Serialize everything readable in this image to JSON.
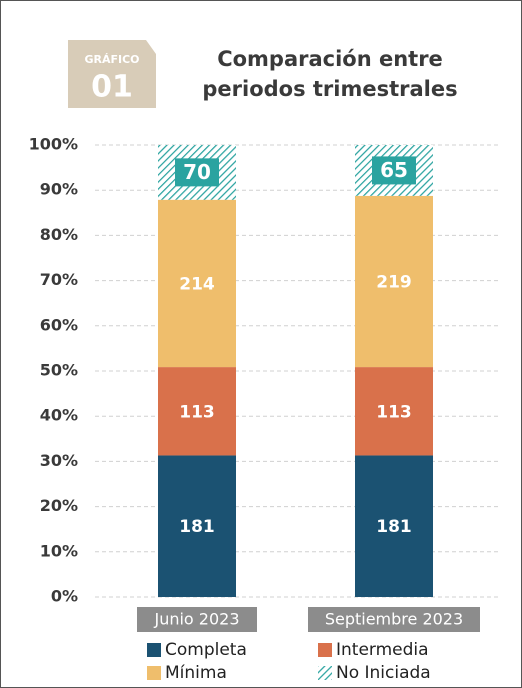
{
  "chart_data": {
    "type": "stacked-bar",
    "stack": "percent",
    "badge": {
      "label": "GRÁFICO",
      "number": "01"
    },
    "title": [
      "Comparación entre",
      "periodos trimestrales"
    ],
    "categories": [
      "Junio 2023",
      "Septiembre 2023"
    ],
    "series": [
      {
        "name": "Completa",
        "color": "#1b5272",
        "values": [
          181,
          181
        ]
      },
      {
        "name": "Intermedia",
        "color": "#d9714b",
        "values": [
          113,
          113
        ]
      },
      {
        "name": "Mínima",
        "color": "#efbe6c",
        "values": [
          214,
          219
        ]
      },
      {
        "name": "No Iniciada",
        "color": "#2aa3a0",
        "hatch": true,
        "values": [
          70,
          65
        ]
      }
    ],
    "ylim": [
      0,
      100
    ],
    "yticks": [
      {
        "value": 0,
        "label": "0%"
      },
      {
        "value": 10,
        "label": "10%"
      },
      {
        "value": 20,
        "label": "20%"
      },
      {
        "value": 30,
        "label": "30%"
      },
      {
        "value": 40,
        "label": "40%"
      },
      {
        "value": 50,
        "label": "50%"
      },
      {
        "value": 60,
        "label": "60%"
      },
      {
        "value": 70,
        "label": "70%"
      },
      {
        "value": 80,
        "label": "80%"
      },
      {
        "value": 90,
        "label": "90%"
      },
      {
        "value": 100,
        "label": "100%"
      }
    ],
    "grid": true,
    "legend": "bottom"
  }
}
